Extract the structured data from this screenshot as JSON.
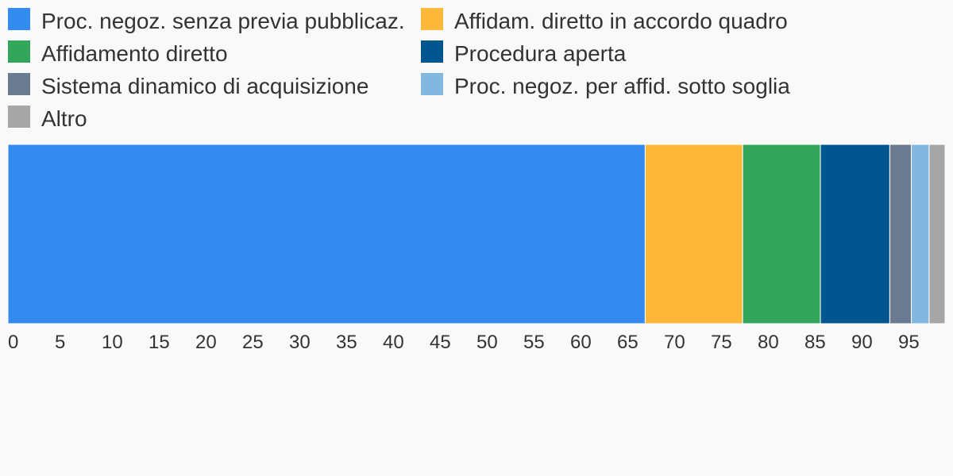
{
  "chart_data": {
    "type": "bar",
    "orientation": "horizontal",
    "stacked": true,
    "xlim": [
      0,
      100
    ],
    "x_ticks": [
      "0",
      "5",
      "10",
      "15",
      "20",
      "25",
      "30",
      "35",
      "40",
      "45",
      "50",
      "55",
      "60",
      "65",
      "70",
      "75",
      "80",
      "85",
      "90",
      "95"
    ],
    "grid": false,
    "legend_position": "top",
    "series": [
      {
        "name": "Proc. negoz. senza previa pubblicaz.",
        "value": 68.0,
        "color": "#338bef"
      },
      {
        "name": "Affidam. diretto in accordo quadro",
        "value": 10.4,
        "color": "#ffb73a"
      },
      {
        "name": "Affidamento diretto",
        "value": 8.3,
        "color": "#33a65b"
      },
      {
        "name": "Procedura aperta",
        "value": 7.4,
        "color": "#02568f"
      },
      {
        "name": "Sistema dinamico di acquisizione",
        "value": 2.3,
        "color": "#6a7a91"
      },
      {
        "name": "Proc. negoz. per affid. sotto soglia",
        "value": 1.9,
        "color": "#82b8e0"
      },
      {
        "name": "Altro",
        "value": 1.7,
        "color": "#a6a6a6"
      }
    ]
  }
}
